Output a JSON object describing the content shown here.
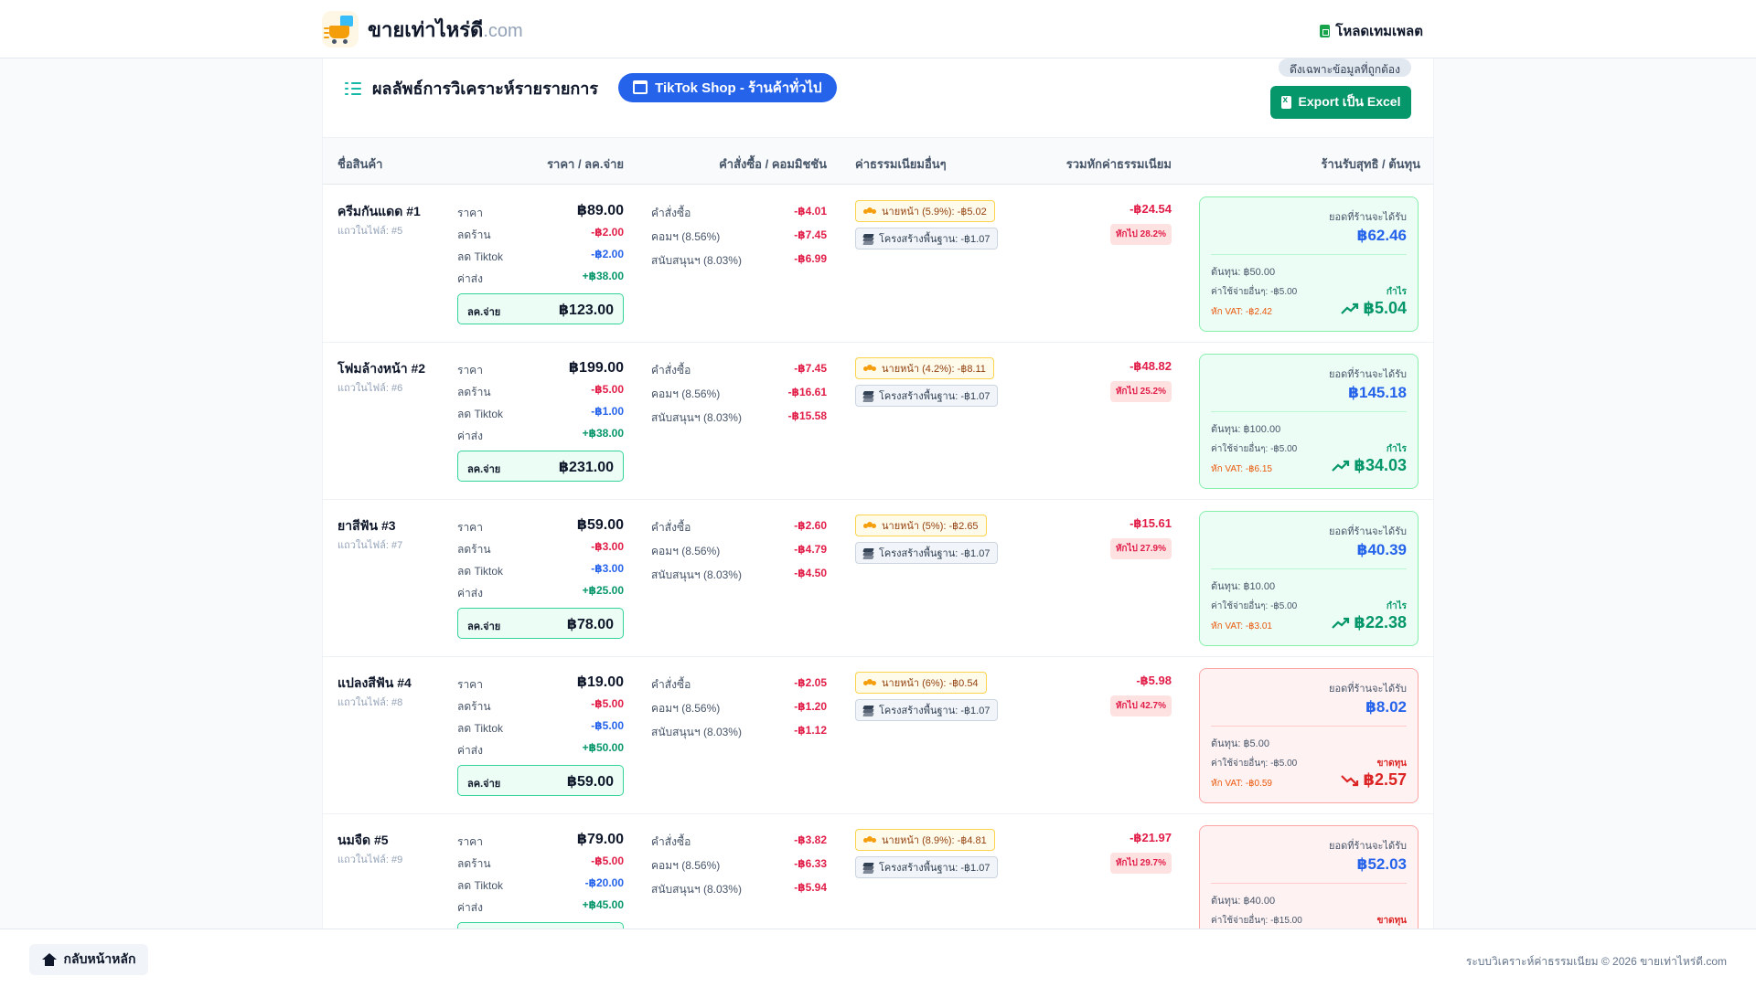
{
  "header": {
    "brand": "ขายเท่าไหร่ดี",
    "brand_suffix": ".com",
    "download_label": "โหลดเทมเพลต"
  },
  "panel": {
    "title": "ผลลัพธ์การวิเคราะห์รายรายการ",
    "shop_pill": "TikTok Shop - ร้านค้าทั่วไป",
    "valid_badge": "ดึงเฉพาะข้อมูลที่ถูกต้อง",
    "export_label": "Export เป็น Excel"
  },
  "table": {
    "headers": [
      "ชื่อสินค้า",
      "ราคา / ลค.จ่าย",
      "คำสั่งซื้อ / คอมมิชชัน",
      "ค่าธรรมเนียมอื่นๆ",
      "รวมหักค่าธรรมเนียม",
      "ร้านรับสุทธิ / ต้นทุน"
    ],
    "labels": {
      "price": "ราคา",
      "shop_discount": "ลดร้าน",
      "tiktok_discount": "ลด Tiktok",
      "shipping": "ค่าส่ง",
      "customer_pays": "ลค.จ่าย",
      "order_fee": "คำสั่งซื้อ",
      "commission": "คอมฯ (8.56%)",
      "support": "สนับสนุนฯ (8.03%)",
      "receive": "ยอดที่ร้านจะได้รับ",
      "extra_expense": "ค่าใช้จ่ายอื่นๆ: -฿5.00"
    },
    "rows": [
      {
        "name": "ครีมกันแดด #1",
        "file_row": "แถวในไฟล์: #5",
        "price": "฿89.00",
        "shop_discount": "-฿2.00",
        "tiktok_discount": "-฿2.00",
        "shipping": "+฿38.00",
        "customer_pays": "฿123.00",
        "order_fee": "-฿4.01",
        "commission": "-฿7.45",
        "support": "-฿6.99",
        "chip_fee": "นายหน้า (5.9%): -฿5.02",
        "chip_infra": "โครงสร้างพื้นฐาน: -฿1.07",
        "total_deduct": "-฿24.54",
        "deduct_pct": "หักไป 28.2%",
        "receive": "฿62.46",
        "cost": "ต้นทุน: ฿50.00",
        "extra_expense": "ค่าใช้จ่ายอื่นๆ: -฿5.00",
        "vat": "หัก VAT: -฿2.42",
        "status": "กำไร",
        "result": "฿5.04",
        "is_loss": false
      },
      {
        "name": "โฟมล้างหน้า #2",
        "file_row": "แถวในไฟล์: #6",
        "price": "฿199.00",
        "shop_discount": "-฿5.00",
        "tiktok_discount": "-฿1.00",
        "shipping": "+฿38.00",
        "customer_pays": "฿231.00",
        "order_fee": "-฿7.45",
        "commission": "-฿16.61",
        "support": "-฿15.58",
        "chip_fee": "นายหน้า (4.2%): -฿8.11",
        "chip_infra": "โครงสร้างพื้นฐาน: -฿1.07",
        "total_deduct": "-฿48.82",
        "deduct_pct": "หักไป 25.2%",
        "receive": "฿145.18",
        "cost": "ต้นทุน: ฿100.00",
        "extra_expense": "ค่าใช้จ่ายอื่นๆ: -฿5.00",
        "vat": "หัก VAT: -฿6.15",
        "status": "กำไร",
        "result": "฿34.03",
        "is_loss": false
      },
      {
        "name": "ยาสีฟัน #3",
        "file_row": "แถวในไฟล์: #7",
        "price": "฿59.00",
        "shop_discount": "-฿3.00",
        "tiktok_discount": "-฿3.00",
        "shipping": "+฿25.00",
        "customer_pays": "฿78.00",
        "order_fee": "-฿2.60",
        "commission": "-฿4.79",
        "support": "-฿4.50",
        "chip_fee": "นายหน้า (5%): -฿2.65",
        "chip_infra": "โครงสร้างพื้นฐาน: -฿1.07",
        "total_deduct": "-฿15.61",
        "deduct_pct": "หักไป 27.9%",
        "receive": "฿40.39",
        "cost": "ต้นทุน: ฿10.00",
        "extra_expense": "ค่าใช้จ่ายอื่นๆ: -฿5.00",
        "vat": "หัก VAT: -฿3.01",
        "status": "กำไร",
        "result": "฿22.38",
        "is_loss": false
      },
      {
        "name": "แปลงสีฟัน #4",
        "file_row": "แถวในไฟล์: #8",
        "price": "฿19.00",
        "shop_discount": "-฿5.00",
        "tiktok_discount": "-฿5.00",
        "shipping": "+฿50.00",
        "customer_pays": "฿59.00",
        "order_fee": "-฿2.05",
        "commission": "-฿1.20",
        "support": "-฿1.12",
        "chip_fee": "นายหน้า (6%): -฿0.54",
        "chip_infra": "โครงสร้างพื้นฐาน: -฿1.07",
        "total_deduct": "-฿5.98",
        "deduct_pct": "หักไป 42.7%",
        "receive": "฿8.02",
        "cost": "ต้นทุน: ฿5.00",
        "extra_expense": "ค่าใช้จ่ายอื่นๆ: -฿5.00",
        "vat": "หัก VAT: -฿0.59",
        "status": "ขาดทุน",
        "result": "฿2.57",
        "is_loss": true
      },
      {
        "name": "นมจืด #5",
        "file_row": "แถวในไฟล์: #9",
        "price": "฿79.00",
        "shop_discount": "-฿5.00",
        "tiktok_discount": "-฿20.00",
        "shipping": "+฿45.00",
        "customer_pays": "",
        "order_fee": "-฿3.82",
        "commission": "-฿6.33",
        "support": "-฿5.94",
        "chip_fee": "นายหน้า (8.9%): -฿4.81",
        "chip_infra": "โครงสร้างพื้นฐาน: -฿1.07",
        "total_deduct": "-฿21.97",
        "deduct_pct": "หักไป 29.7%",
        "receive": "฿52.03",
        "cost": "ต้นทุน: ฿40.00",
        "extra_expense": "ค่าใช้จ่ายอื่นๆ: -฿15.00",
        "vat": "",
        "status": "ขาดทุน",
        "result": "",
        "is_loss": true
      }
    ]
  },
  "footer": {
    "home_label": "กลับหน้าหลัก",
    "copyright": "ระบบวิเคราะห์ค่าธรรมเนียม © 2026 ขายเท่าไหร่ดี.com"
  },
  "colors": {
    "primary_blue": "#2563eb",
    "profit_green": "#059669",
    "loss_red": "#dc2626",
    "fee_red": "#e11d48"
  }
}
